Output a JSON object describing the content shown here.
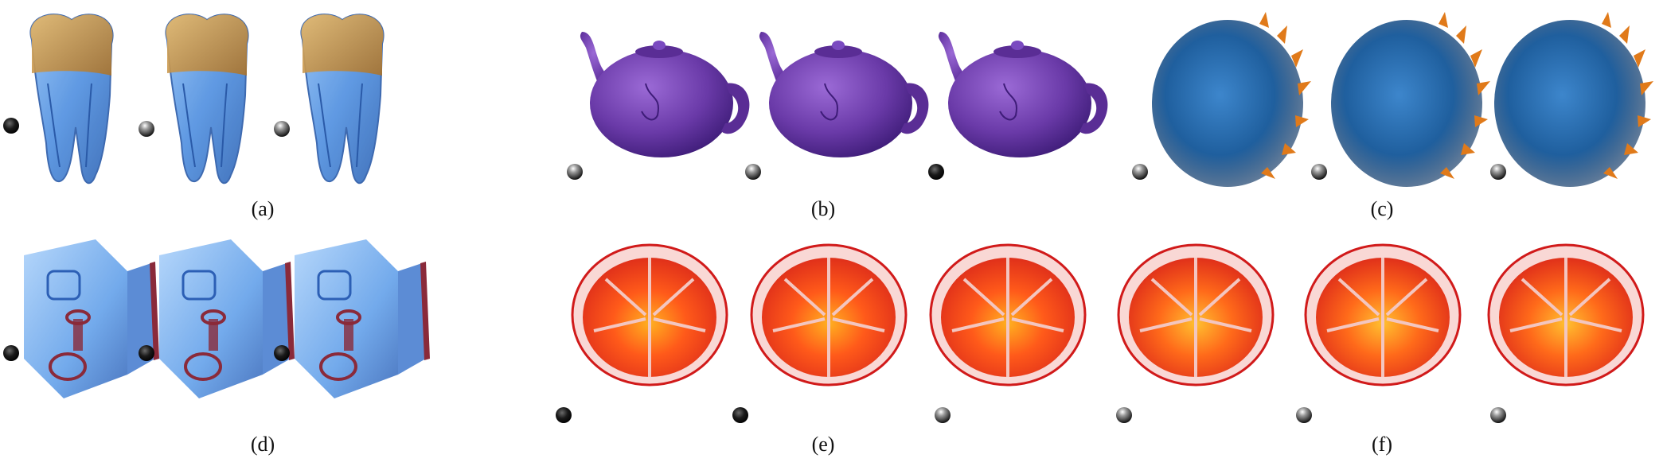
{
  "figure": {
    "groups": [
      {
        "id": "a",
        "caption": "(a)",
        "subject": "tooth",
        "colors": {
          "primary": "#4f8fe0",
          "secondary": "#c8943c"
        }
      },
      {
        "id": "b",
        "caption": "(b)",
        "subject": "teapot",
        "colors": {
          "primary": "#6a3aa8",
          "secondary": "#4a2380"
        }
      },
      {
        "id": "c",
        "caption": "(c)",
        "subject": "spiked-sphere",
        "colors": {
          "primary": "#1f5f9e",
          "secondary": "#e07a1a"
        }
      },
      {
        "id": "d",
        "caption": "(d)",
        "subject": "engine-block",
        "colors": {
          "primary": "#5a9be8",
          "secondary": "#8a2a3a"
        }
      },
      {
        "id": "e",
        "caption": "(e)",
        "subject": "orange",
        "colors": {
          "primary": "#ff5a1a",
          "secondary": "#d11a1a"
        }
      },
      {
        "id": "f",
        "caption": "(f)",
        "subject": "orange",
        "colors": {
          "primary": "#ff6a1a",
          "secondary": "#d11a1a"
        }
      }
    ]
  }
}
